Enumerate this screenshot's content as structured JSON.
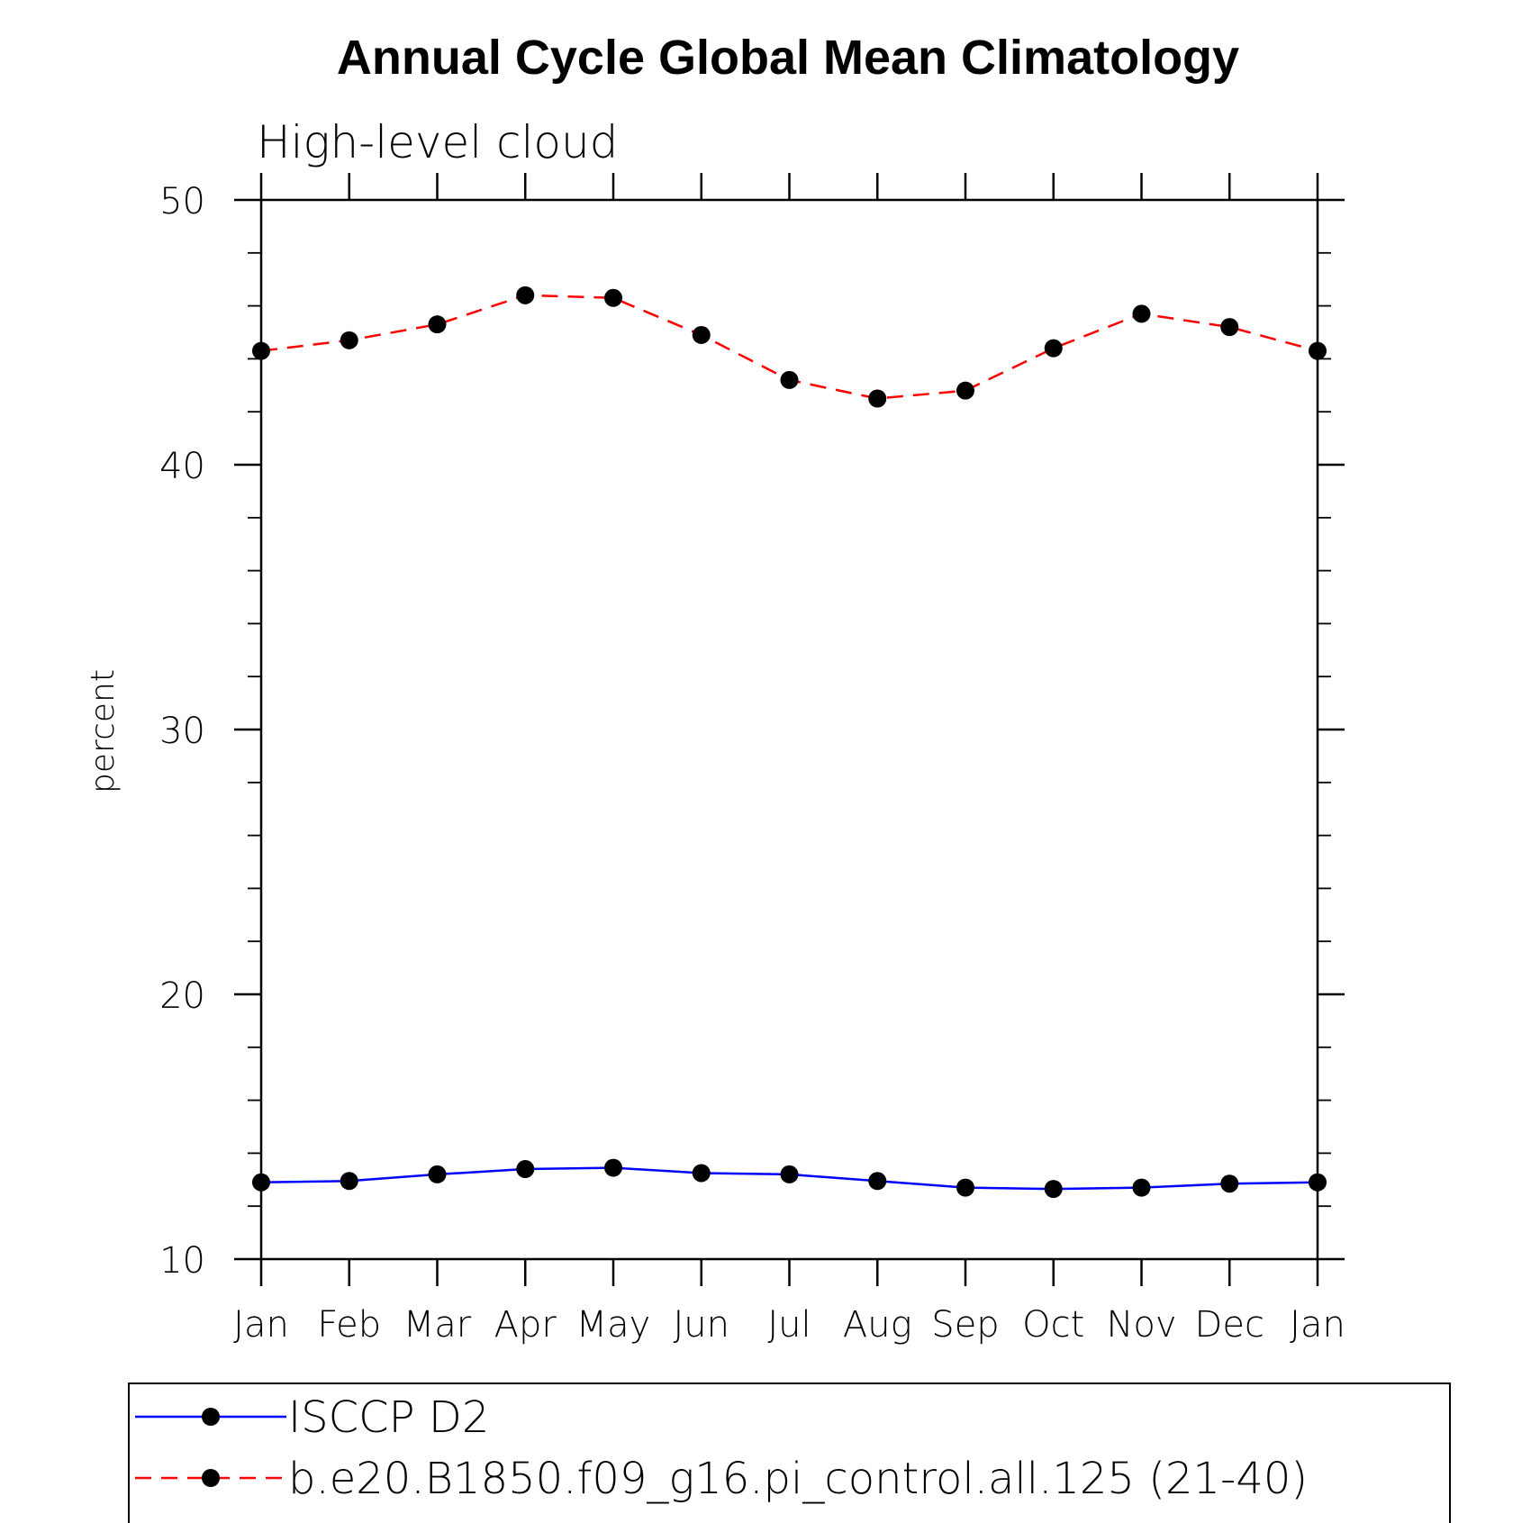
{
  "chart_data": {
    "type": "line",
    "title": "Annual Cycle Global Mean Climatology",
    "subtitle": "High-level cloud",
    "xlabel": "",
    "ylabel": "percent",
    "categories": [
      "Jan",
      "Feb",
      "Mar",
      "Apr",
      "May",
      "Jun",
      "Jul",
      "Aug",
      "Sep",
      "Oct",
      "Nov",
      "Dec",
      "Jan"
    ],
    "ylim": [
      10,
      50
    ],
    "yticks": [
      10,
      20,
      30,
      40,
      50
    ],
    "grid": false,
    "legend_position": "bottom",
    "series": [
      {
        "name": "ISCCP D2",
        "color": "#0000ff",
        "line_style": "solid",
        "marker": "filled-circle",
        "values": [
          12.9,
          12.95,
          13.2,
          13.4,
          13.45,
          13.25,
          13.2,
          12.95,
          12.7,
          12.65,
          12.7,
          12.85,
          12.9
        ]
      },
      {
        "name": "b.e20.B1850.f09_g16.pi_control.all.125 (21-40)",
        "color": "#ff0000",
        "line_style": "dashed",
        "marker": "filled-circle",
        "values": [
          44.3,
          44.7,
          45.3,
          46.4,
          46.3,
          44.9,
          43.2,
          42.5,
          42.8,
          44.4,
          45.7,
          45.2,
          44.3
        ]
      }
    ]
  }
}
